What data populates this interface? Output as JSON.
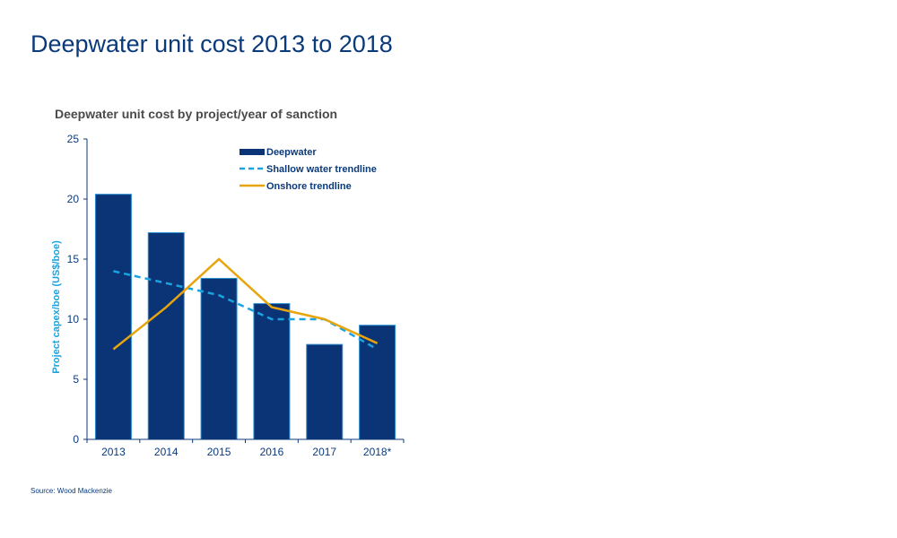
{
  "page": {
    "title": "Deepwater unit cost 2013 to 2018",
    "source": "Source: Wood Mackenzie"
  },
  "chart_data": {
    "type": "bar",
    "title": "Deepwater unit cost by project/year of sanction",
    "xlabel": "",
    "ylabel": "Project capex/boe (US$/boe)",
    "ylim": [
      0,
      25
    ],
    "yticks": [
      0,
      5,
      10,
      15,
      20,
      25
    ],
    "categories": [
      "2013",
      "2014",
      "2015",
      "2016",
      "2017",
      "2018*"
    ],
    "grid": false,
    "legend_placement": "top-right",
    "series": [
      {
        "name": "Deepwater",
        "kind": "bar",
        "color": "#0b3477",
        "values": [
          20.4,
          17.2,
          13.4,
          11.3,
          7.9,
          9.5
        ]
      },
      {
        "name": "Shallow water trendline",
        "kind": "dashed-line",
        "color": "#1aa3e0",
        "values": [
          14,
          13,
          12,
          10,
          10,
          7.5
        ]
      },
      {
        "name": "Onshore trendline",
        "kind": "line",
        "color": "#e8a40c",
        "values": [
          7.5,
          11,
          15,
          11,
          10,
          8
        ]
      }
    ]
  }
}
